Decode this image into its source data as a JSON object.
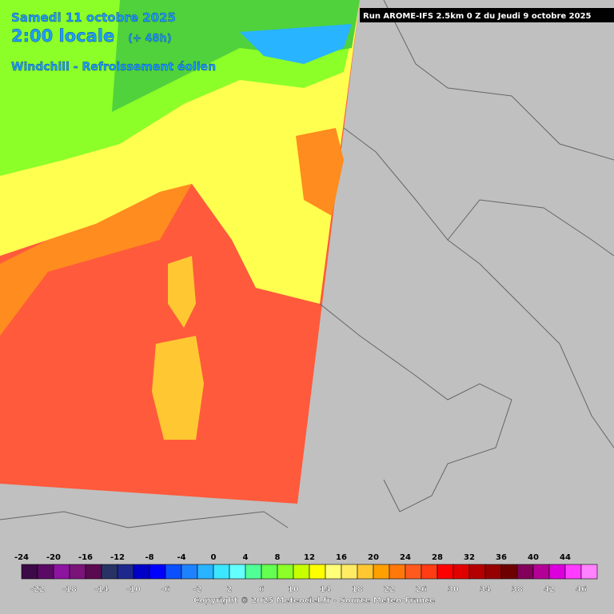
{
  "header": {
    "date": "Samedi 11 octobre 2025",
    "time": "2:00 locale",
    "lead": "(+ 48h)",
    "field": "Windchill - Refroissement éolien",
    "run": "Run AROME-IFS 2.5km 0 Z du Jeudi 9 octobre 2025"
  },
  "legend": {
    "values": [
      -24,
      -22,
      -20,
      -18,
      -16,
      -14,
      -12,
      -10,
      -8,
      -6,
      -4,
      -2,
      0,
      2,
      4,
      6,
      8,
      10,
      12,
      14,
      16,
      18,
      20,
      22,
      24,
      26,
      28,
      30,
      32,
      34,
      36,
      38,
      40,
      42,
      44,
      46
    ],
    "colors": [
      "#3c0a46",
      "#5a0a64",
      "#8c14a0",
      "#7a1478",
      "#5a0a50",
      "#283264",
      "#1e288c",
      "#0000c8",
      "#0000ff",
      "#0a50ff",
      "#1e82ff",
      "#28b4ff",
      "#3ce6ff",
      "#64ffff",
      "#50ff96",
      "#64ff50",
      "#8cff28",
      "#c8ff00",
      "#ffff00",
      "#ffff78",
      "#ffeb64",
      "#ffc832",
      "#ffa000",
      "#ff780a",
      "#ff5a1e",
      "#ff3c14",
      "#ff0000",
      "#e10000",
      "#b40000",
      "#960000",
      "#6e0000",
      "#82005a",
      "#b40096",
      "#dc00dc",
      "#ff3cff",
      "#ff82ff"
    ]
  },
  "footer": {
    "copyright": "Copyright © 2025 Meteociel.fr - Source Meteo-France"
  }
}
